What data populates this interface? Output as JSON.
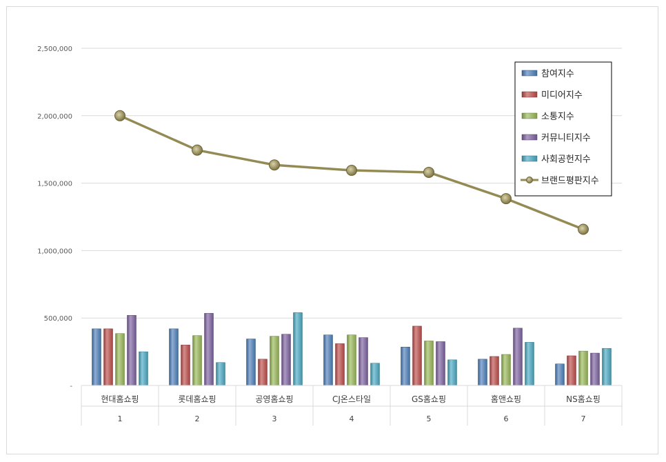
{
  "chart_data": {
    "type": "bar",
    "categories": [
      "현대홈쇼핑",
      "롯데홈쇼핑",
      "공영홈쇼핑",
      "CJ온스타일",
      "GS홈쇼핑",
      "홈앤쇼핑",
      "NS홈쇼핑"
    ],
    "ranks": [
      "1",
      "2",
      "3",
      "4",
      "5",
      "6",
      "7"
    ],
    "y_ticks": [
      {
        "value": 0,
        "label": "-"
      },
      {
        "value": 500000,
        "label": "500,000"
      },
      {
        "value": 1000000,
        "label": "1,000,000"
      },
      {
        "value": 1500000,
        "label": "1,500,000"
      },
      {
        "value": 2000000,
        "label": "2,000,000"
      },
      {
        "value": 2500000,
        "label": "2,500,000"
      }
    ],
    "ylim": [
      0,
      2500000
    ],
    "grid": true,
    "legend_position": "top-right",
    "series": [
      {
        "name": "참여지수",
        "kind": "bar",
        "color": "#4f81bd",
        "values": [
          420000,
          420000,
          345000,
          375000,
          285000,
          195000,
          160000
        ]
      },
      {
        "name": "미디어지수",
        "kind": "bar",
        "color": "#c0504d",
        "values": [
          420000,
          300000,
          195000,
          310000,
          440000,
          215000,
          220000
        ]
      },
      {
        "name": "소통지수",
        "kind": "bar",
        "color": "#9bbb59",
        "values": [
          385000,
          370000,
          365000,
          375000,
          330000,
          230000,
          255000
        ]
      },
      {
        "name": "커뮤니티지수",
        "kind": "bar",
        "color": "#8064a2",
        "values": [
          520000,
          535000,
          380000,
          355000,
          325000,
          425000,
          240000
        ]
      },
      {
        "name": "사회공헌지수",
        "kind": "bar",
        "color": "#4bacc6",
        "values": [
          250000,
          170000,
          540000,
          165000,
          190000,
          320000,
          275000
        ]
      },
      {
        "name": "브랜드평판지수",
        "kind": "line",
        "color": "#948a54",
        "values": [
          2000000,
          1745000,
          1635000,
          1595000,
          1580000,
          1385000,
          1158000
        ]
      }
    ]
  }
}
